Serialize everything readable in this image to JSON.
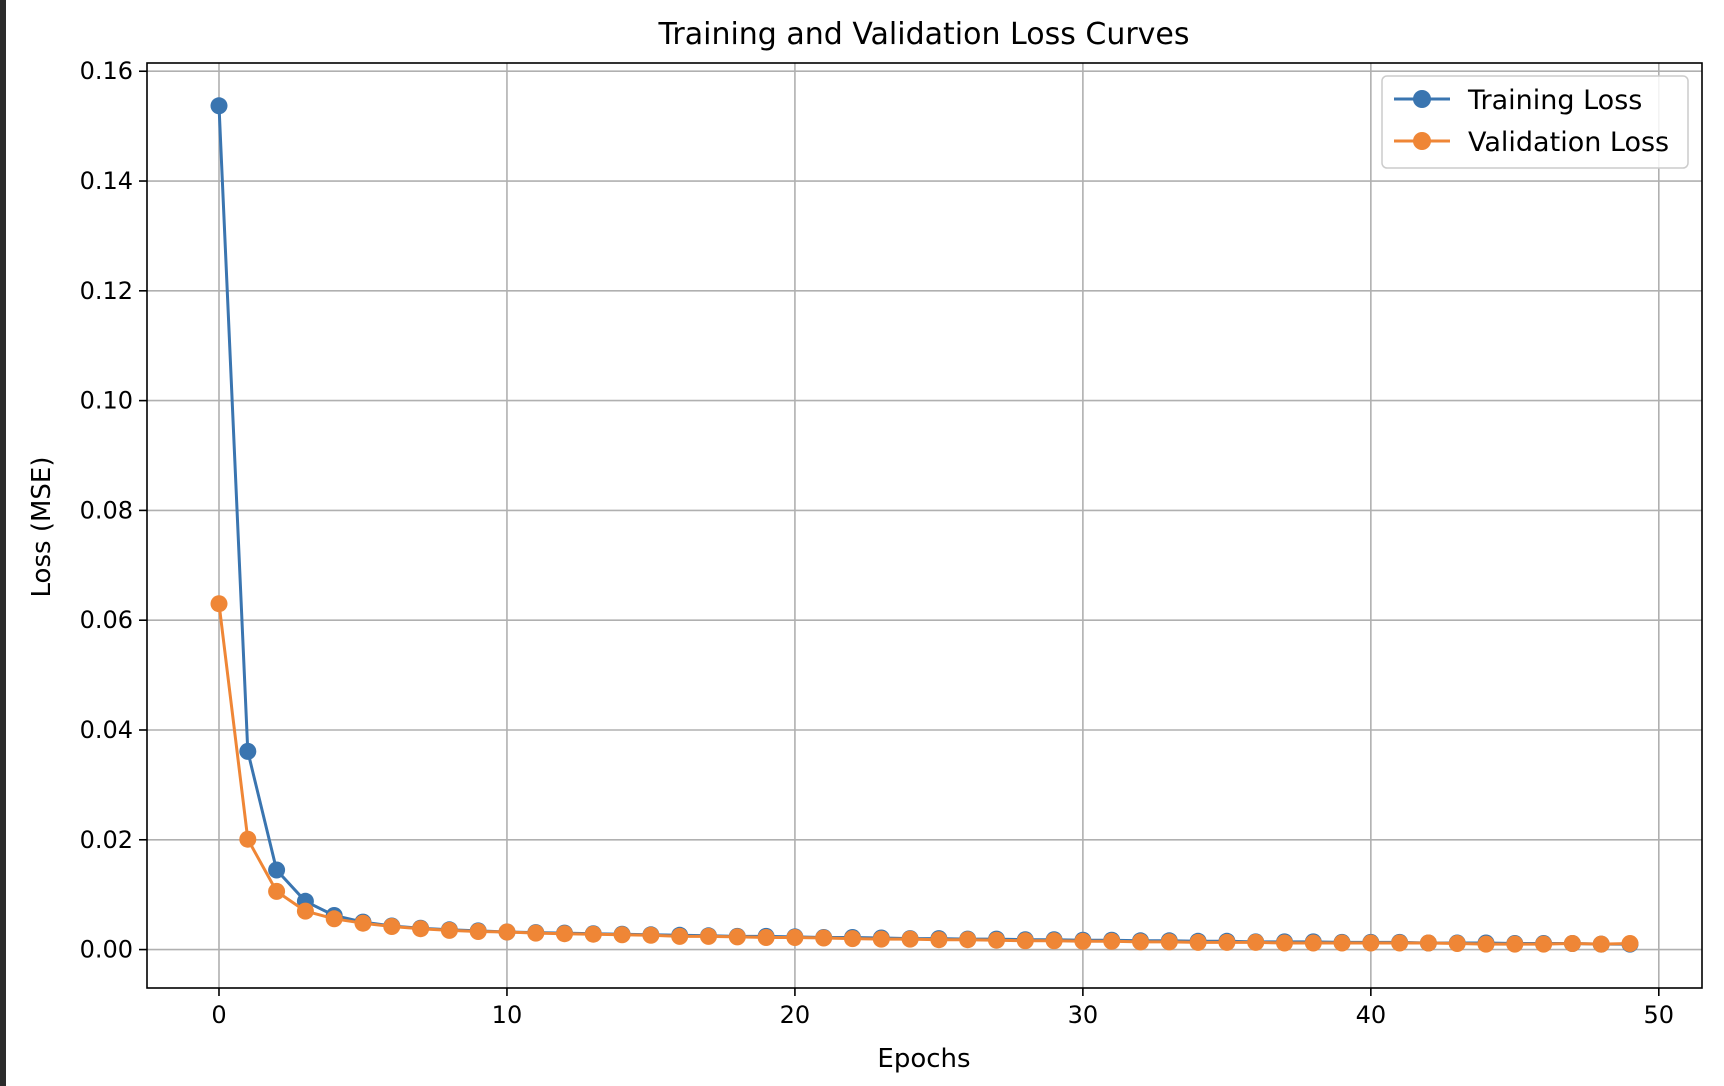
{
  "chart_data": {
    "type": "line",
    "title": "Training and Validation Loss Curves",
    "xlabel": "Epochs",
    "ylabel": "Loss (MSE)",
    "xlim": [
      -2.5,
      51.5
    ],
    "ylim": [
      -0.007,
      0.1615
    ],
    "xticks": [
      0,
      10,
      20,
      30,
      40,
      50
    ],
    "xtick_labels": [
      "0",
      "10",
      "20",
      "30",
      "40",
      "50"
    ],
    "yticks": [
      0.0,
      0.02,
      0.04,
      0.06,
      0.08,
      0.1,
      0.12,
      0.14,
      0.16
    ],
    "ytick_labels": [
      "0.00",
      "0.02",
      "0.04",
      "0.06",
      "0.08",
      "0.10",
      "0.12",
      "0.14",
      "0.16"
    ],
    "grid": true,
    "legend": "top-right",
    "x": [
      0,
      1,
      2,
      3,
      4,
      5,
      6,
      7,
      8,
      9,
      10,
      11,
      12,
      13,
      14,
      15,
      16,
      17,
      18,
      19,
      20,
      21,
      22,
      23,
      24,
      25,
      26,
      27,
      28,
      29,
      30,
      31,
      32,
      33,
      34,
      35,
      36,
      37,
      38,
      39,
      40,
      41,
      42,
      43,
      44,
      45,
      46,
      47,
      48,
      49
    ],
    "series": [
      {
        "name": "Training Loss",
        "color": "#3a75b0",
        "values": [
          0.1537,
          0.0361,
          0.0145,
          0.0088,
          0.0062,
          0.005,
          0.0043,
          0.0039,
          0.0036,
          0.0034,
          0.0032,
          0.0031,
          0.003,
          0.0029,
          0.0028,
          0.0027,
          0.0026,
          0.0025,
          0.0024,
          0.0024,
          0.0023,
          0.0022,
          0.0022,
          0.0021,
          0.002,
          0.002,
          0.0019,
          0.0019,
          0.0018,
          0.0018,
          0.0017,
          0.0017,
          0.0016,
          0.0016,
          0.0015,
          0.0015,
          0.0014,
          0.0014,
          0.0014,
          0.0013,
          0.0013,
          0.0013,
          0.0012,
          0.0012,
          0.0012,
          0.0011,
          0.0011,
          0.0011,
          0.001,
          0.001
        ]
      },
      {
        "name": "Validation Loss",
        "color": "#ef8636",
        "values": [
          0.063,
          0.0201,
          0.0106,
          0.007,
          0.0056,
          0.0048,
          0.0042,
          0.0038,
          0.0035,
          0.0033,
          0.0032,
          0.003,
          0.0029,
          0.0028,
          0.0027,
          0.0026,
          0.0024,
          0.0024,
          0.0023,
          0.0022,
          0.0022,
          0.0021,
          0.002,
          0.0019,
          0.0019,
          0.0018,
          0.0018,
          0.0017,
          0.0016,
          0.0016,
          0.0015,
          0.0015,
          0.0014,
          0.0014,
          0.0013,
          0.0013,
          0.0013,
          0.0012,
          0.0012,
          0.0012,
          0.0012,
          0.0012,
          0.0012,
          0.0011,
          0.001,
          0.001,
          0.001,
          0.0011,
          0.001,
          0.0011
        ]
      }
    ]
  }
}
